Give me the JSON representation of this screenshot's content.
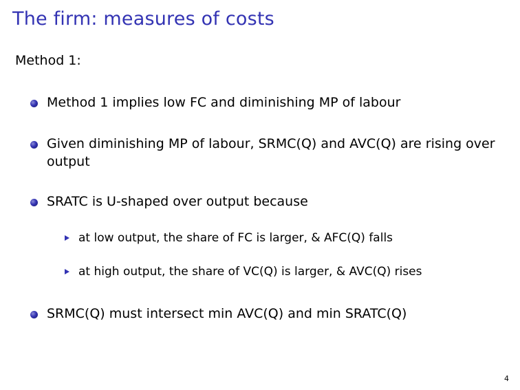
{
  "slide": {
    "title": "The firm: measures of costs",
    "subtitle": "Method 1:",
    "bullets": [
      "Method 1 implies low FC and diminishing MP of labour",
      "Given diminishing MP of labour, SRMC(Q) and AVC(Q) are rising over output",
      "SRATC is U-shaped over output because",
      "SRMC(Q) must intersect min AVC(Q) and min SRATC(Q)"
    ],
    "sub_bullets": [
      "at low output, the share of FC is larger, & AFC(Q) falls",
      "at high output, the share of VC(Q) is larger, & AVC(Q) rises"
    ],
    "page_number": "4"
  }
}
